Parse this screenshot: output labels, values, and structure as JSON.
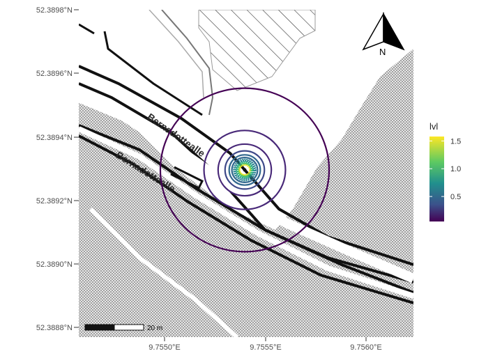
{
  "map": {
    "y_axis_labels": [
      "52.3898°N",
      "52.3896°N",
      "52.3894°N",
      "52.3892°N",
      "52.3890°N",
      "52.3888°N"
    ],
    "x_axis_labels": [
      "9.7550°E",
      "9.7555°E",
      "9.7560°E"
    ],
    "street_labels": [
      "Bernadottealle",
      "Bernadottealle"
    ],
    "north_arrow_label": "N",
    "scale_bar_label": "20 m",
    "colors": {
      "background_hatch": "#bdbdbd",
      "road_outline": "#111111",
      "building_hatch": "#333333"
    }
  },
  "legend": {
    "title": "lvl",
    "ticks": [
      "1.5",
      "1.0",
      "0.5"
    ],
    "tick_values": [
      1.5,
      1.0,
      0.5
    ],
    "range": [
      0.05,
      1.58
    ],
    "colormap": "viridis"
  },
  "contours": {
    "levels": [
      0.1,
      0.2,
      0.3,
      0.4,
      0.5,
      0.6,
      0.7,
      0.8,
      0.9,
      1.0,
      1.1,
      1.2,
      1.3,
      1.4,
      1.5
    ],
    "center_marker": "point-source"
  }
}
